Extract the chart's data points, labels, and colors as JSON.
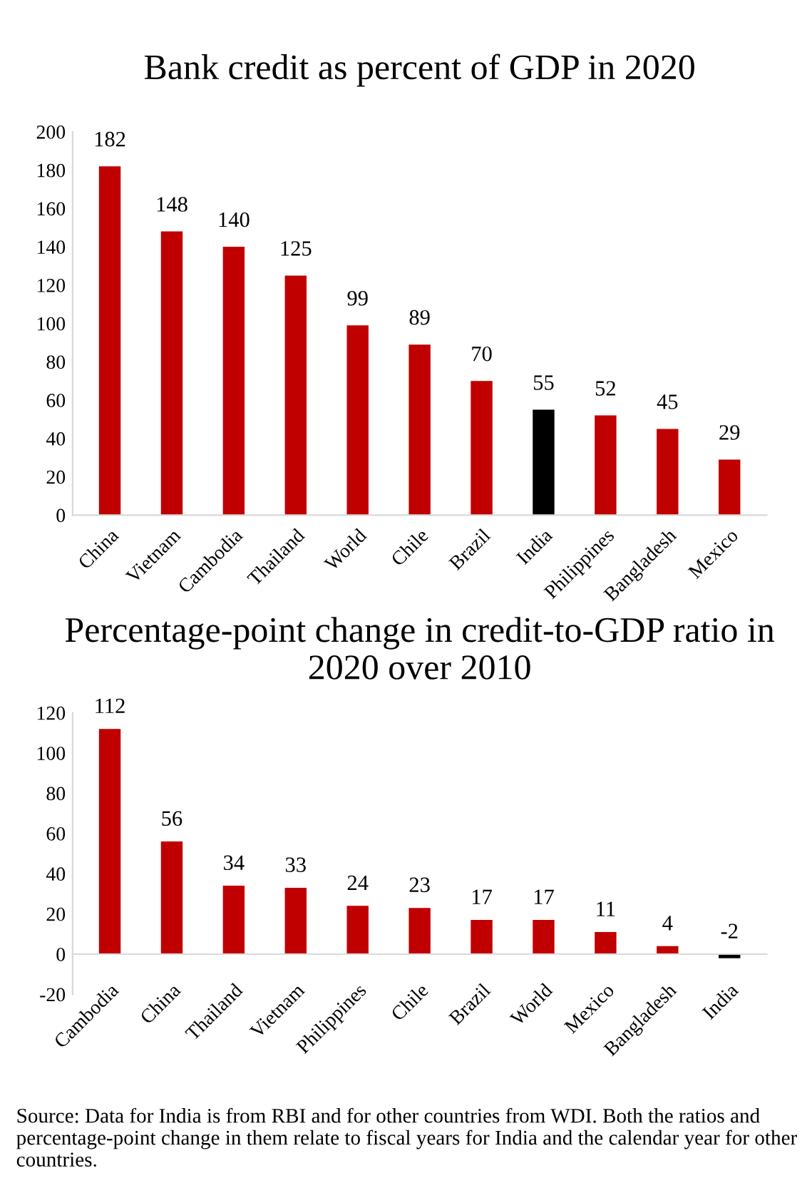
{
  "chart_data": [
    {
      "type": "bar",
      "title": "Bank credit as percent of GDP in 2020",
      "categories": [
        "China",
        "Vietnam",
        "Cambodia",
        "Thailand",
        "World",
        "Chile",
        "Brazil",
        "India",
        "Philippines",
        "Bangladesh",
        "Mexico"
      ],
      "values": [
        182,
        148,
        140,
        125,
        99,
        89,
        70,
        55,
        52,
        45,
        29
      ],
      "colors": [
        "#c00000",
        "#c00000",
        "#c00000",
        "#c00000",
        "#c00000",
        "#c00000",
        "#c00000",
        "#000000",
        "#c00000",
        "#c00000",
        "#c00000"
      ],
      "ylim": [
        0,
        200
      ],
      "yticks": [
        0,
        20,
        40,
        60,
        80,
        100,
        120,
        140,
        160,
        180,
        200
      ],
      "data_labels": true,
      "grid": false
    },
    {
      "type": "bar",
      "title": "Percentage-point change in credit-to-GDP ratio in 2020 over 2010",
      "categories": [
        "Cambodia",
        "China",
        "Thailand",
        "Vietnam",
        "Philippines",
        "Chile",
        "Brazil",
        "World",
        "Mexico",
        "Bangladesh",
        "India"
      ],
      "values": [
        112,
        56,
        34,
        33,
        24,
        23,
        17,
        17,
        11,
        4,
        -2
      ],
      "colors": [
        "#c00000",
        "#c00000",
        "#c00000",
        "#c00000",
        "#c00000",
        "#c00000",
        "#c00000",
        "#c00000",
        "#c00000",
        "#c00000",
        "#000000"
      ],
      "ylim": [
        -20,
        120
      ],
      "yticks": [
        -20,
        0,
        20,
        40,
        60,
        80,
        100,
        120
      ],
      "data_labels": true,
      "grid": false,
      "annotations": [
        "Source: Data for India is from RBI and for other countries from WDI. Both the ratios and percentage-point change in them relate to fiscal years for India and the calendar year for other countries."
      ]
    }
  ]
}
